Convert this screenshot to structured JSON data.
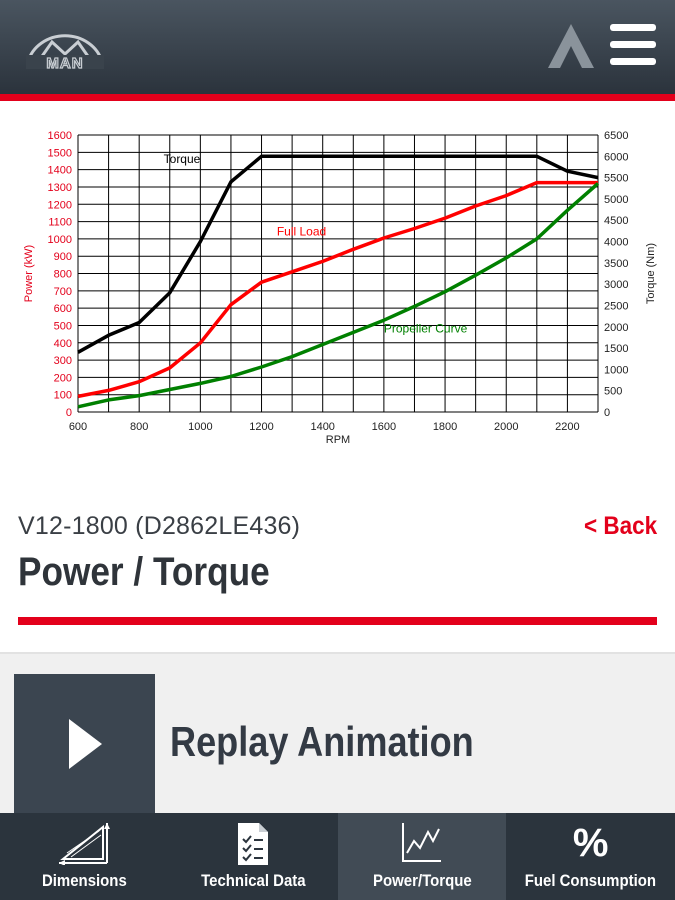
{
  "header": {
    "logo_text": "MAN",
    "logo_icon": "man-logo",
    "brand_icon": "a-chevron-icon",
    "menu_icon": "hamburger-menu-icon"
  },
  "chart_data": {
    "type": "line",
    "xlabel": "RPM",
    "ylabel_left": "Power (kW)",
    "ylabel_right": "Torque (Nm)",
    "xlim": [
      600,
      2300
    ],
    "ylim_left": [
      0,
      1600
    ],
    "ylim_right": [
      0,
      6500
    ],
    "x_ticks": [
      600,
      800,
      1000,
      1200,
      1400,
      1600,
      1800,
      2000,
      2200
    ],
    "y_left_ticks": [
      0,
      100,
      200,
      300,
      400,
      500,
      600,
      700,
      800,
      900,
      1000,
      1100,
      1200,
      1300,
      1400,
      1500,
      1600
    ],
    "y_right_ticks": [
      0,
      500,
      1000,
      1500,
      2000,
      2500,
      3000,
      3500,
      4000,
      4500,
      5000,
      5500,
      6000,
      6500
    ],
    "grid": true,
    "series": [
      {
        "name": "Torque",
        "axis": "right",
        "color": "#000000",
        "points": [
          [
            600,
            1400
          ],
          [
            700,
            1800
          ],
          [
            800,
            2100
          ],
          [
            900,
            2800
          ],
          [
            1000,
            4000
          ],
          [
            1100,
            5400
          ],
          [
            1200,
            6000
          ],
          [
            1300,
            6000
          ],
          [
            1400,
            6000
          ],
          [
            1500,
            6000
          ],
          [
            1600,
            6000
          ],
          [
            1700,
            6000
          ],
          [
            1800,
            6000
          ],
          [
            1900,
            6000
          ],
          [
            2000,
            6000
          ],
          [
            2100,
            6000
          ],
          [
            2200,
            5650
          ],
          [
            2300,
            5500
          ]
        ]
      },
      {
        "name": "Full Load",
        "axis": "left",
        "color": "#ff0000",
        "points": [
          [
            600,
            90
          ],
          [
            700,
            125
          ],
          [
            800,
            175
          ],
          [
            900,
            255
          ],
          [
            1000,
            400
          ],
          [
            1100,
            620
          ],
          [
            1200,
            750
          ],
          [
            1300,
            810
          ],
          [
            1400,
            870
          ],
          [
            1500,
            940
          ],
          [
            1600,
            1005
          ],
          [
            1700,
            1060
          ],
          [
            1800,
            1120
          ],
          [
            1900,
            1190
          ],
          [
            2000,
            1250
          ],
          [
            2100,
            1325
          ],
          [
            2200,
            1325
          ],
          [
            2300,
            1325
          ]
        ]
      },
      {
        "name": "Propeller Curve",
        "axis": "left",
        "color": "#008000",
        "points": [
          [
            600,
            30
          ],
          [
            700,
            70
          ],
          [
            800,
            95
          ],
          [
            900,
            130
          ],
          [
            1000,
            165
          ],
          [
            1100,
            205
          ],
          [
            1200,
            260
          ],
          [
            1300,
            320
          ],
          [
            1400,
            390
          ],
          [
            1500,
            460
          ],
          [
            1600,
            530
          ],
          [
            1700,
            610
          ],
          [
            1800,
            695
          ],
          [
            1900,
            790
          ],
          [
            2000,
            890
          ],
          [
            2100,
            1000
          ],
          [
            2200,
            1165
          ],
          [
            2300,
            1320
          ]
        ]
      }
    ],
    "annotations": [
      {
        "text": "Torque",
        "x": 880,
        "y_left": 1437
      },
      {
        "text": "Full Load",
        "x": 1250,
        "y_left": 1020
      },
      {
        "text": "Propeller Curve",
        "x": 1600,
        "y_left": 460
      }
    ]
  },
  "subtitle": "V12-1800 (D2862LE436)",
  "title": "Power / Torque",
  "back_label": "< Back",
  "replay": {
    "label": "Replay Animation",
    "icon": "play-icon"
  },
  "nav": [
    {
      "label": "Dimensions",
      "icon": "dimensions-icon",
      "active": false
    },
    {
      "label": "Technical Data",
      "icon": "checklist-icon",
      "active": false
    },
    {
      "label": "Power/Torque",
      "icon": "line-chart-icon",
      "active": true
    },
    {
      "label": "Fuel Consumption",
      "icon": "percent-icon",
      "glyph": "%",
      "active": false
    }
  ]
}
